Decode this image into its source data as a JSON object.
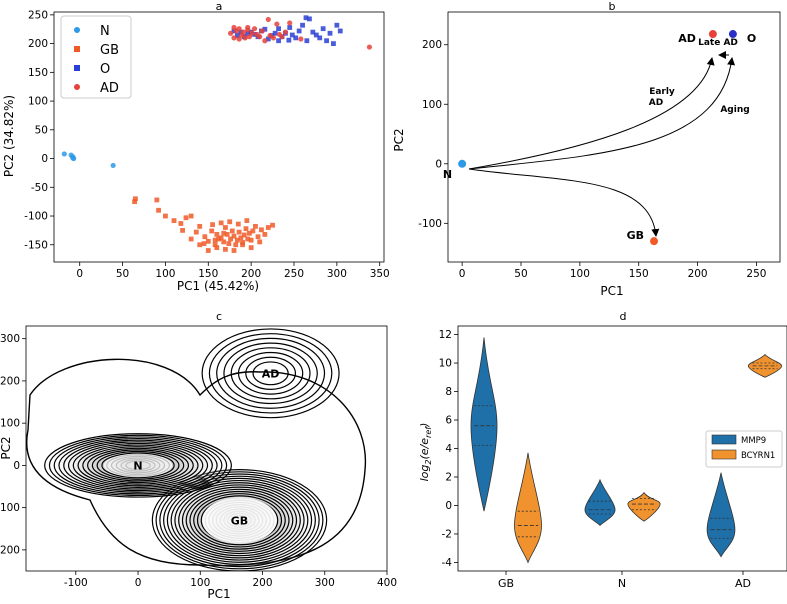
{
  "chart_data": [
    {
      "panel": "a",
      "type": "scatter",
      "title": "a",
      "xlabel": "PC1 (45.42%)",
      "ylabel": "PC2 (34.82%)",
      "xlim": [
        -30,
        355
      ],
      "ylim": [
        -180,
        255
      ],
      "xticks": [
        0,
        50,
        100,
        150,
        200,
        250,
        300,
        350
      ],
      "yticks": [
        -150,
        -100,
        -50,
        0,
        50,
        100,
        150,
        200,
        250
      ],
      "legend_position": "top-left",
      "grid": false,
      "series": [
        {
          "name": "N",
          "color": "#2e9ae6",
          "marker": "circle",
          "points": [
            [
              -18,
              8
            ],
            [
              -10,
              6
            ],
            [
              -8,
              3
            ],
            [
              -7,
              0
            ],
            [
              -8,
              1
            ],
            [
              39,
              -12
            ]
          ]
        },
        {
          "name": "GB",
          "color": "#f05a28",
          "marker": "square",
          "points": [
            [
              65,
              -70
            ],
            [
              64,
              -75
            ],
            [
              90,
              -72
            ],
            [
              92,
              -90
            ],
            [
              100,
              -100
            ],
            [
              110,
              -108
            ],
            [
              118,
              -113
            ],
            [
              124,
              -103
            ],
            [
              130,
              -100
            ],
            [
              136,
              -128
            ],
            [
              140,
              -118
            ],
            [
              146,
              -136
            ],
            [
              150,
              -144
            ],
            [
              154,
              -126
            ],
            [
              158,
              -150
            ],
            [
              160,
              -132
            ],
            [
              162,
              -140
            ],
            [
              165,
              -138
            ],
            [
              168,
              -145
            ],
            [
              170,
              -120
            ],
            [
              172,
              -132
            ],
            [
              174,
              -148
            ],
            [
              176,
              -140
            ],
            [
              178,
              -126
            ],
            [
              180,
              -135
            ],
            [
              182,
              -150
            ],
            [
              184,
              -142
            ],
            [
              186,
              -128
            ],
            [
              188,
              -138
            ],
            [
              190,
              -146
            ],
            [
              192,
              -133
            ],
            [
              194,
              -122
            ],
            [
              196,
              -140
            ],
            [
              198,
              -130
            ],
            [
              200,
              -142
            ],
            [
              202,
              -126
            ],
            [
              205,
              -118
            ],
            [
              208,
              -136
            ],
            [
              212,
              -124
            ],
            [
              216,
              -132
            ],
            [
              220,
              -120
            ],
            [
              225,
              -116
            ],
            [
              140,
              -150
            ],
            [
              150,
              -160
            ],
            [
              160,
              -155
            ],
            [
              170,
              -158
            ],
            [
              180,
              -160
            ],
            [
              190,
              -150
            ],
            [
              200,
              -155
            ],
            [
              210,
              -145
            ],
            [
              155,
              -115
            ],
            [
              165,
              -112
            ],
            [
              175,
              -110
            ],
            [
              185,
              -114
            ],
            [
              195,
              -108
            ],
            [
              130,
              -140
            ],
            [
              120,
              -125
            ],
            [
              145,
              -148
            ],
            [
              158,
              -142
            ],
            [
              168,
              -130
            ]
          ]
        },
        {
          "name": "O",
          "color": "#2a3fd4",
          "marker": "square",
          "points": [
            [
              180,
              222
            ],
            [
              184,
              214
            ],
            [
              188,
              220
            ],
            [
              192,
              212
            ],
            [
              196,
              218
            ],
            [
              200,
              220
            ],
            [
              204,
              216
            ],
            [
              208,
              212
            ],
            [
              212,
              222
            ],
            [
              216,
              225
            ],
            [
              220,
              208
            ],
            [
              224,
              214
            ],
            [
              228,
              218
            ],
            [
              232,
              205
            ],
            [
              236,
              212
            ],
            [
              240,
              218
            ],
            [
              244,
              206
            ],
            [
              248,
              215
            ],
            [
              252,
              210
            ],
            [
              256,
              222
            ],
            [
              260,
              232
            ],
            [
              264,
              245
            ],
            [
              268,
              243
            ],
            [
              272,
              220
            ],
            [
              276,
              215
            ],
            [
              280,
              210
            ],
            [
              284,
              226
            ],
            [
              288,
              205
            ],
            [
              292,
              218
            ],
            [
              296,
              200
            ],
            [
              300,
              232
            ],
            [
              304,
              222
            ],
            [
              265,
              205
            ],
            [
              245,
              228
            ],
            [
              232,
              226
            ]
          ]
        },
        {
          "name": "AD",
          "color": "#e8413a",
          "marker": "circle",
          "points": [
            [
              176,
              218
            ],
            [
              180,
              210
            ],
            [
              183,
              222
            ],
            [
              186,
              208
            ],
            [
              189,
              215
            ],
            [
              191,
              220
            ],
            [
              193,
              210
            ],
            [
              196,
              224
            ],
            [
              198,
              212
            ],
            [
              201,
              218
            ],
            [
              204,
              226
            ],
            [
              207,
              216
            ],
            [
              210,
              212
            ],
            [
              213,
              222
            ],
            [
              216,
              205
            ],
            [
              220,
              242
            ],
            [
              222,
              214
            ],
            [
              226,
              210
            ],
            [
              230,
              234
            ],
            [
              233,
              216
            ],
            [
              236,
              212
            ],
            [
              240,
              220
            ],
            [
              245,
              236
            ],
            [
              258,
              208
            ],
            [
              338,
              194
            ],
            [
              196,
              228
            ],
            [
              186,
              226
            ],
            [
              180,
              228
            ]
          ]
        }
      ]
    },
    {
      "panel": "b",
      "type": "scatter",
      "title": "b",
      "xlabel": "PC1",
      "ylabel": "PC2",
      "xlim": [
        -12,
        270
      ],
      "ylim": [
        -165,
        255
      ],
      "xticks": [
        0,
        50,
        100,
        150,
        200,
        250
      ],
      "yticks": [
        -100,
        0,
        100,
        200
      ],
      "points": [
        {
          "label": "N",
          "x": 0,
          "y": 0,
          "color": "#2e9ae6"
        },
        {
          "label": "GB",
          "x": 163,
          "y": -130,
          "color": "#f05a28"
        },
        {
          "label": "AD",
          "x": 213,
          "y": 218,
          "color": "#e8413a"
        },
        {
          "label": "O",
          "x": 230,
          "y": 218,
          "color": "#2a2fc8"
        }
      ],
      "arrow_labels": [
        "Early AD",
        "Aging",
        "Late AD"
      ]
    },
    {
      "panel": "c",
      "type": "heatmap",
      "title": "c",
      "xlabel": "PC1",
      "ylabel": "PC2",
      "xlim": [
        -180,
        400
      ],
      "ylim": [
        -250,
        330
      ],
      "xticks": [
        -100,
        0,
        100,
        200,
        300,
        400
      ],
      "yticks": [
        -200,
        -100,
        0,
        100,
        200,
        300
      ],
      "labels": [
        {
          "text": "N",
          "x": 0,
          "y": 0,
          "color": "#2e9ae6"
        },
        {
          "text": "GB",
          "x": 163,
          "y": -130,
          "color": "#f05a28"
        },
        {
          "text": "AD",
          "x": 213,
          "y": 218,
          "color": "#e8413a"
        }
      ]
    },
    {
      "panel": "d",
      "type": "violin",
      "title": "d",
      "ylabel": "log2(e/eref)",
      "categories": [
        "GB",
        "N",
        "AD"
      ],
      "ylim": [
        -4.6,
        12.6
      ],
      "yticks": [
        -4,
        -2,
        0,
        2,
        4,
        6,
        8,
        10,
        12
      ],
      "legend_position": "right",
      "series": [
        {
          "name": "MMP9",
          "color": "#1f6fa8",
          "violins": [
            {
              "category": "GB",
              "min": -0.4,
              "max": 11.8,
              "q1": 4.2,
              "median": 5.6,
              "q3": 7.0
            },
            {
              "category": "N",
              "min": -1.4,
              "max": 1.8,
              "q1": -0.6,
              "median": -0.3,
              "q3": 0.3
            },
            {
              "category": "AD",
              "min": -3.6,
              "max": 2.3,
              "q1": -2.3,
              "median": -1.7,
              "q3": -0.9
            }
          ]
        },
        {
          "name": "BCYRN1",
          "color": "#f0922e",
          "violins": [
            {
              "category": "GB",
              "min": -4.0,
              "max": 3.7,
              "q1": -2.2,
              "median": -1.4,
              "q3": -0.4
            },
            {
              "category": "N",
              "min": -1.1,
              "max": 0.9,
              "q1": -0.3,
              "median": 0.1,
              "q3": 0.5
            },
            {
              "category": "AD",
              "min": 9.0,
              "max": 10.6,
              "q1": 9.6,
              "median": 9.8,
              "q3": 10.0
            }
          ]
        }
      ]
    }
  ]
}
